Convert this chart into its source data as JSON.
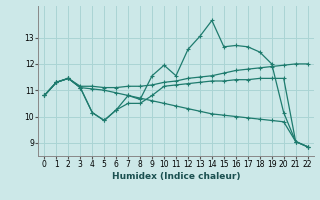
{
  "xlabel": "Humidex (Indice chaleur)",
  "background_color": "#cce8e8",
  "grid_color": "#aad4d4",
  "line_color": "#1e7b6e",
  "x": [
    0,
    1,
    2,
    3,
    4,
    5,
    6,
    7,
    8,
    9,
    10,
    11,
    12,
    13,
    14,
    15,
    16,
    17,
    18,
    19,
    20,
    21,
    22
  ],
  "line1": [
    10.8,
    11.3,
    11.45,
    11.1,
    10.15,
    9.85,
    10.25,
    10.8,
    10.65,
    11.55,
    11.95,
    11.55,
    12.55,
    13.05,
    13.65,
    12.65,
    12.7,
    12.65,
    12.45,
    12.0,
    10.15,
    9.05,
    8.85
  ],
  "line2": [
    10.8,
    11.3,
    11.45,
    11.15,
    11.15,
    11.1,
    11.1,
    11.15,
    11.15,
    11.2,
    11.3,
    11.35,
    11.45,
    11.5,
    11.55,
    11.65,
    11.75,
    11.8,
    11.85,
    11.9,
    11.95,
    12.0,
    12.0
  ],
  "line3": [
    10.8,
    11.3,
    11.45,
    11.1,
    10.15,
    9.85,
    10.25,
    10.5,
    10.5,
    10.8,
    11.15,
    11.2,
    11.25,
    11.3,
    11.35,
    11.35,
    11.4,
    11.4,
    11.45,
    11.45,
    11.45,
    9.05,
    8.85
  ],
  "line4": [
    10.8,
    11.3,
    11.45,
    11.1,
    11.05,
    11.0,
    10.9,
    10.8,
    10.7,
    10.6,
    10.5,
    10.4,
    10.3,
    10.2,
    10.1,
    10.05,
    10.0,
    9.95,
    9.9,
    9.85,
    9.8,
    9.05,
    8.85
  ],
  "ylim": [
    8.5,
    14.2
  ],
  "yticks": [
    9,
    10,
    11,
    12,
    13
  ],
  "xticks": [
    0,
    1,
    2,
    3,
    4,
    5,
    6,
    7,
    8,
    9,
    10,
    11,
    12,
    13,
    14,
    15,
    16,
    17,
    18,
    19,
    20,
    21,
    22
  ]
}
